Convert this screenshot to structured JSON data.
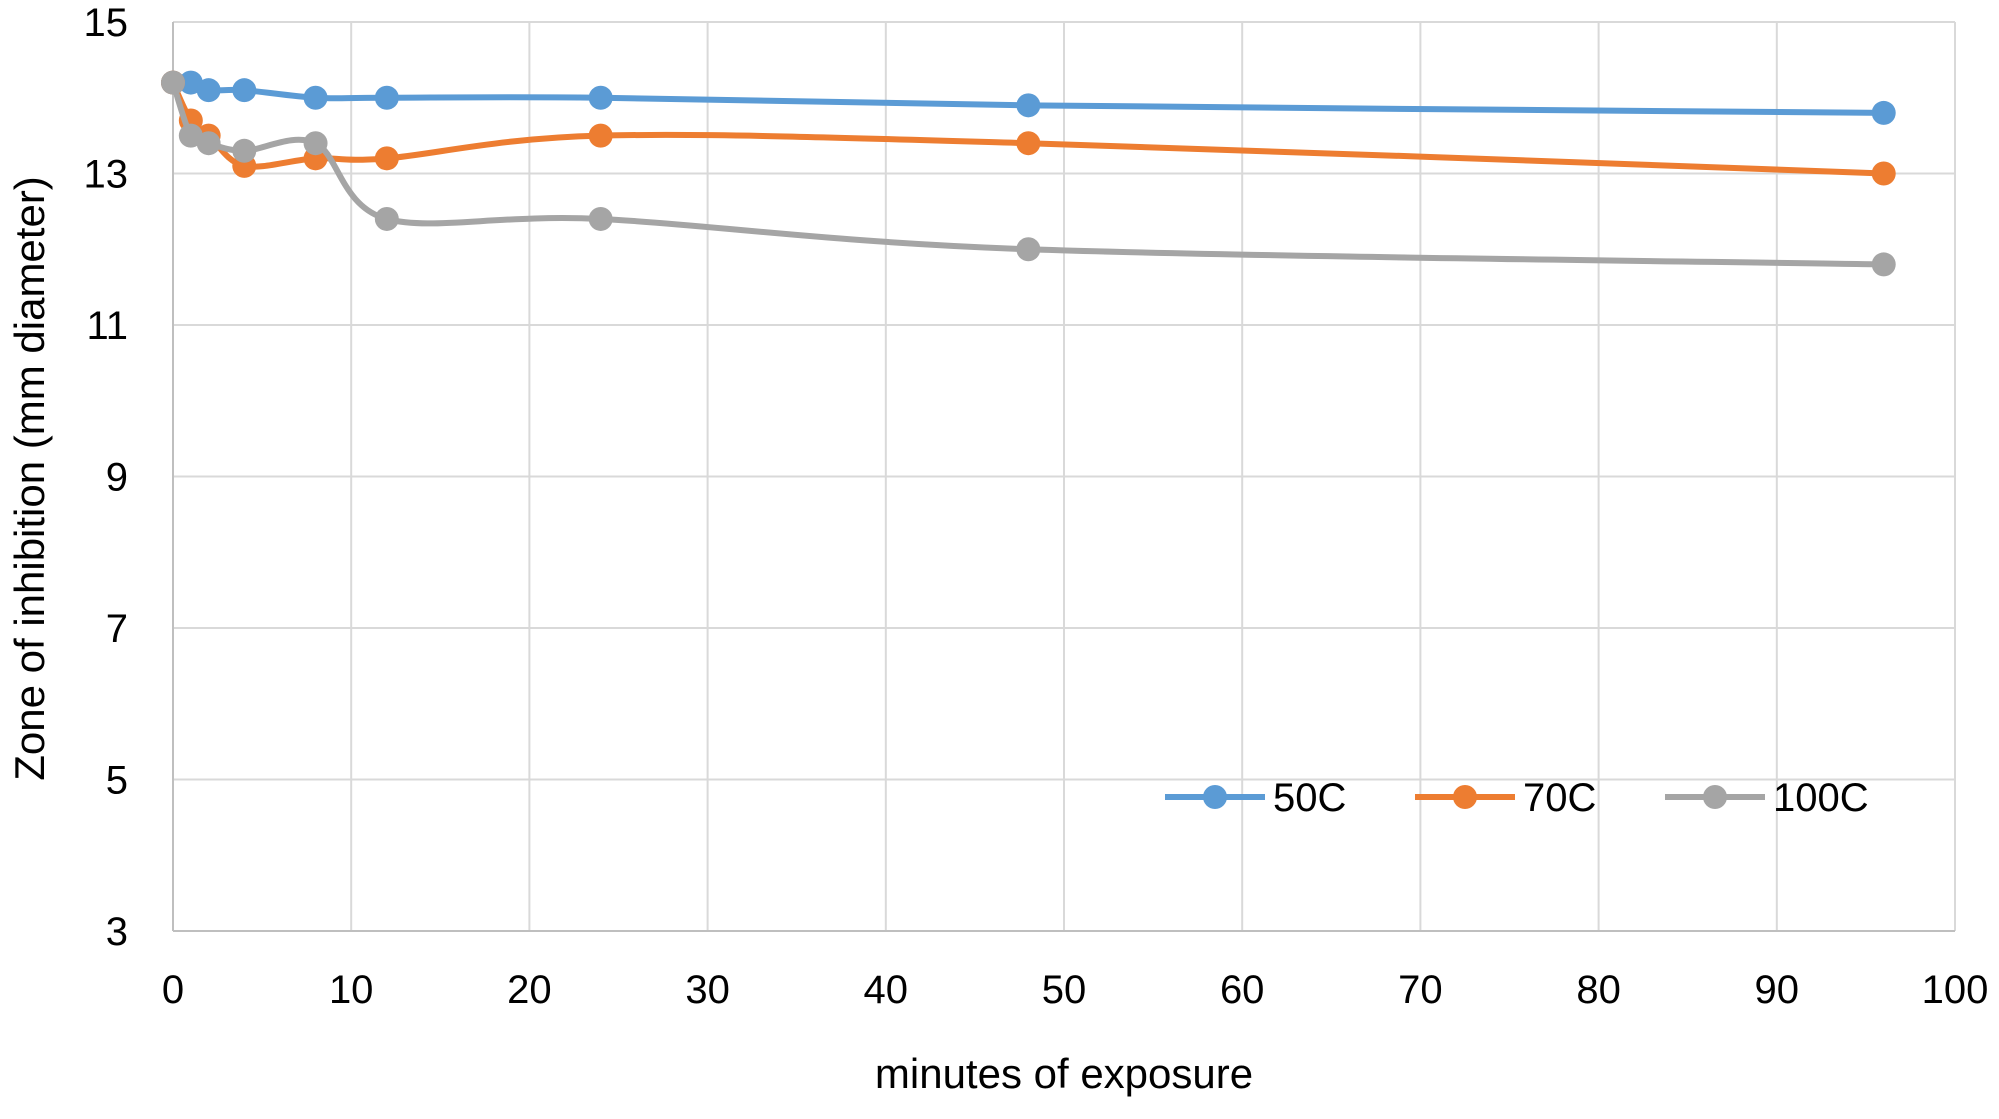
{
  "chart_data": {
    "type": "line",
    "title": "",
    "xlabel": "minutes of exposure",
    "ylabel": "Zone of inhibition (mm diameter)",
    "xlim": [
      0,
      100
    ],
    "ylim": [
      3,
      15
    ],
    "x_ticks": [
      0,
      10,
      20,
      30,
      40,
      50,
      60,
      70,
      80,
      90,
      100
    ],
    "y_ticks": [
      3,
      5,
      7,
      9,
      11,
      13,
      15
    ],
    "grid": true,
    "legend_position": "bottom-right",
    "smooth": true,
    "series": [
      {
        "name": "50C",
        "color": "#5b9bd5",
        "x": [
          0,
          1,
          2,
          4,
          8,
          12,
          24,
          48,
          96
        ],
        "y": [
          14.2,
          14.2,
          14.1,
          14.1,
          14.0,
          14.0,
          14.0,
          13.9,
          13.8
        ]
      },
      {
        "name": "70C",
        "color": "#ed7d31",
        "x": [
          0,
          1,
          2,
          4,
          8,
          12,
          24,
          48,
          96
        ],
        "y": [
          14.2,
          13.7,
          13.5,
          13.1,
          13.2,
          13.2,
          13.5,
          13.4,
          13.0
        ]
      },
      {
        "name": "100C",
        "color": "#a5a5a5",
        "x": [
          0,
          1,
          2,
          4,
          8,
          12,
          24,
          48,
          96
        ],
        "y": [
          14.2,
          13.5,
          13.4,
          13.3,
          13.4,
          12.4,
          12.4,
          12.0,
          11.8
        ]
      }
    ]
  }
}
